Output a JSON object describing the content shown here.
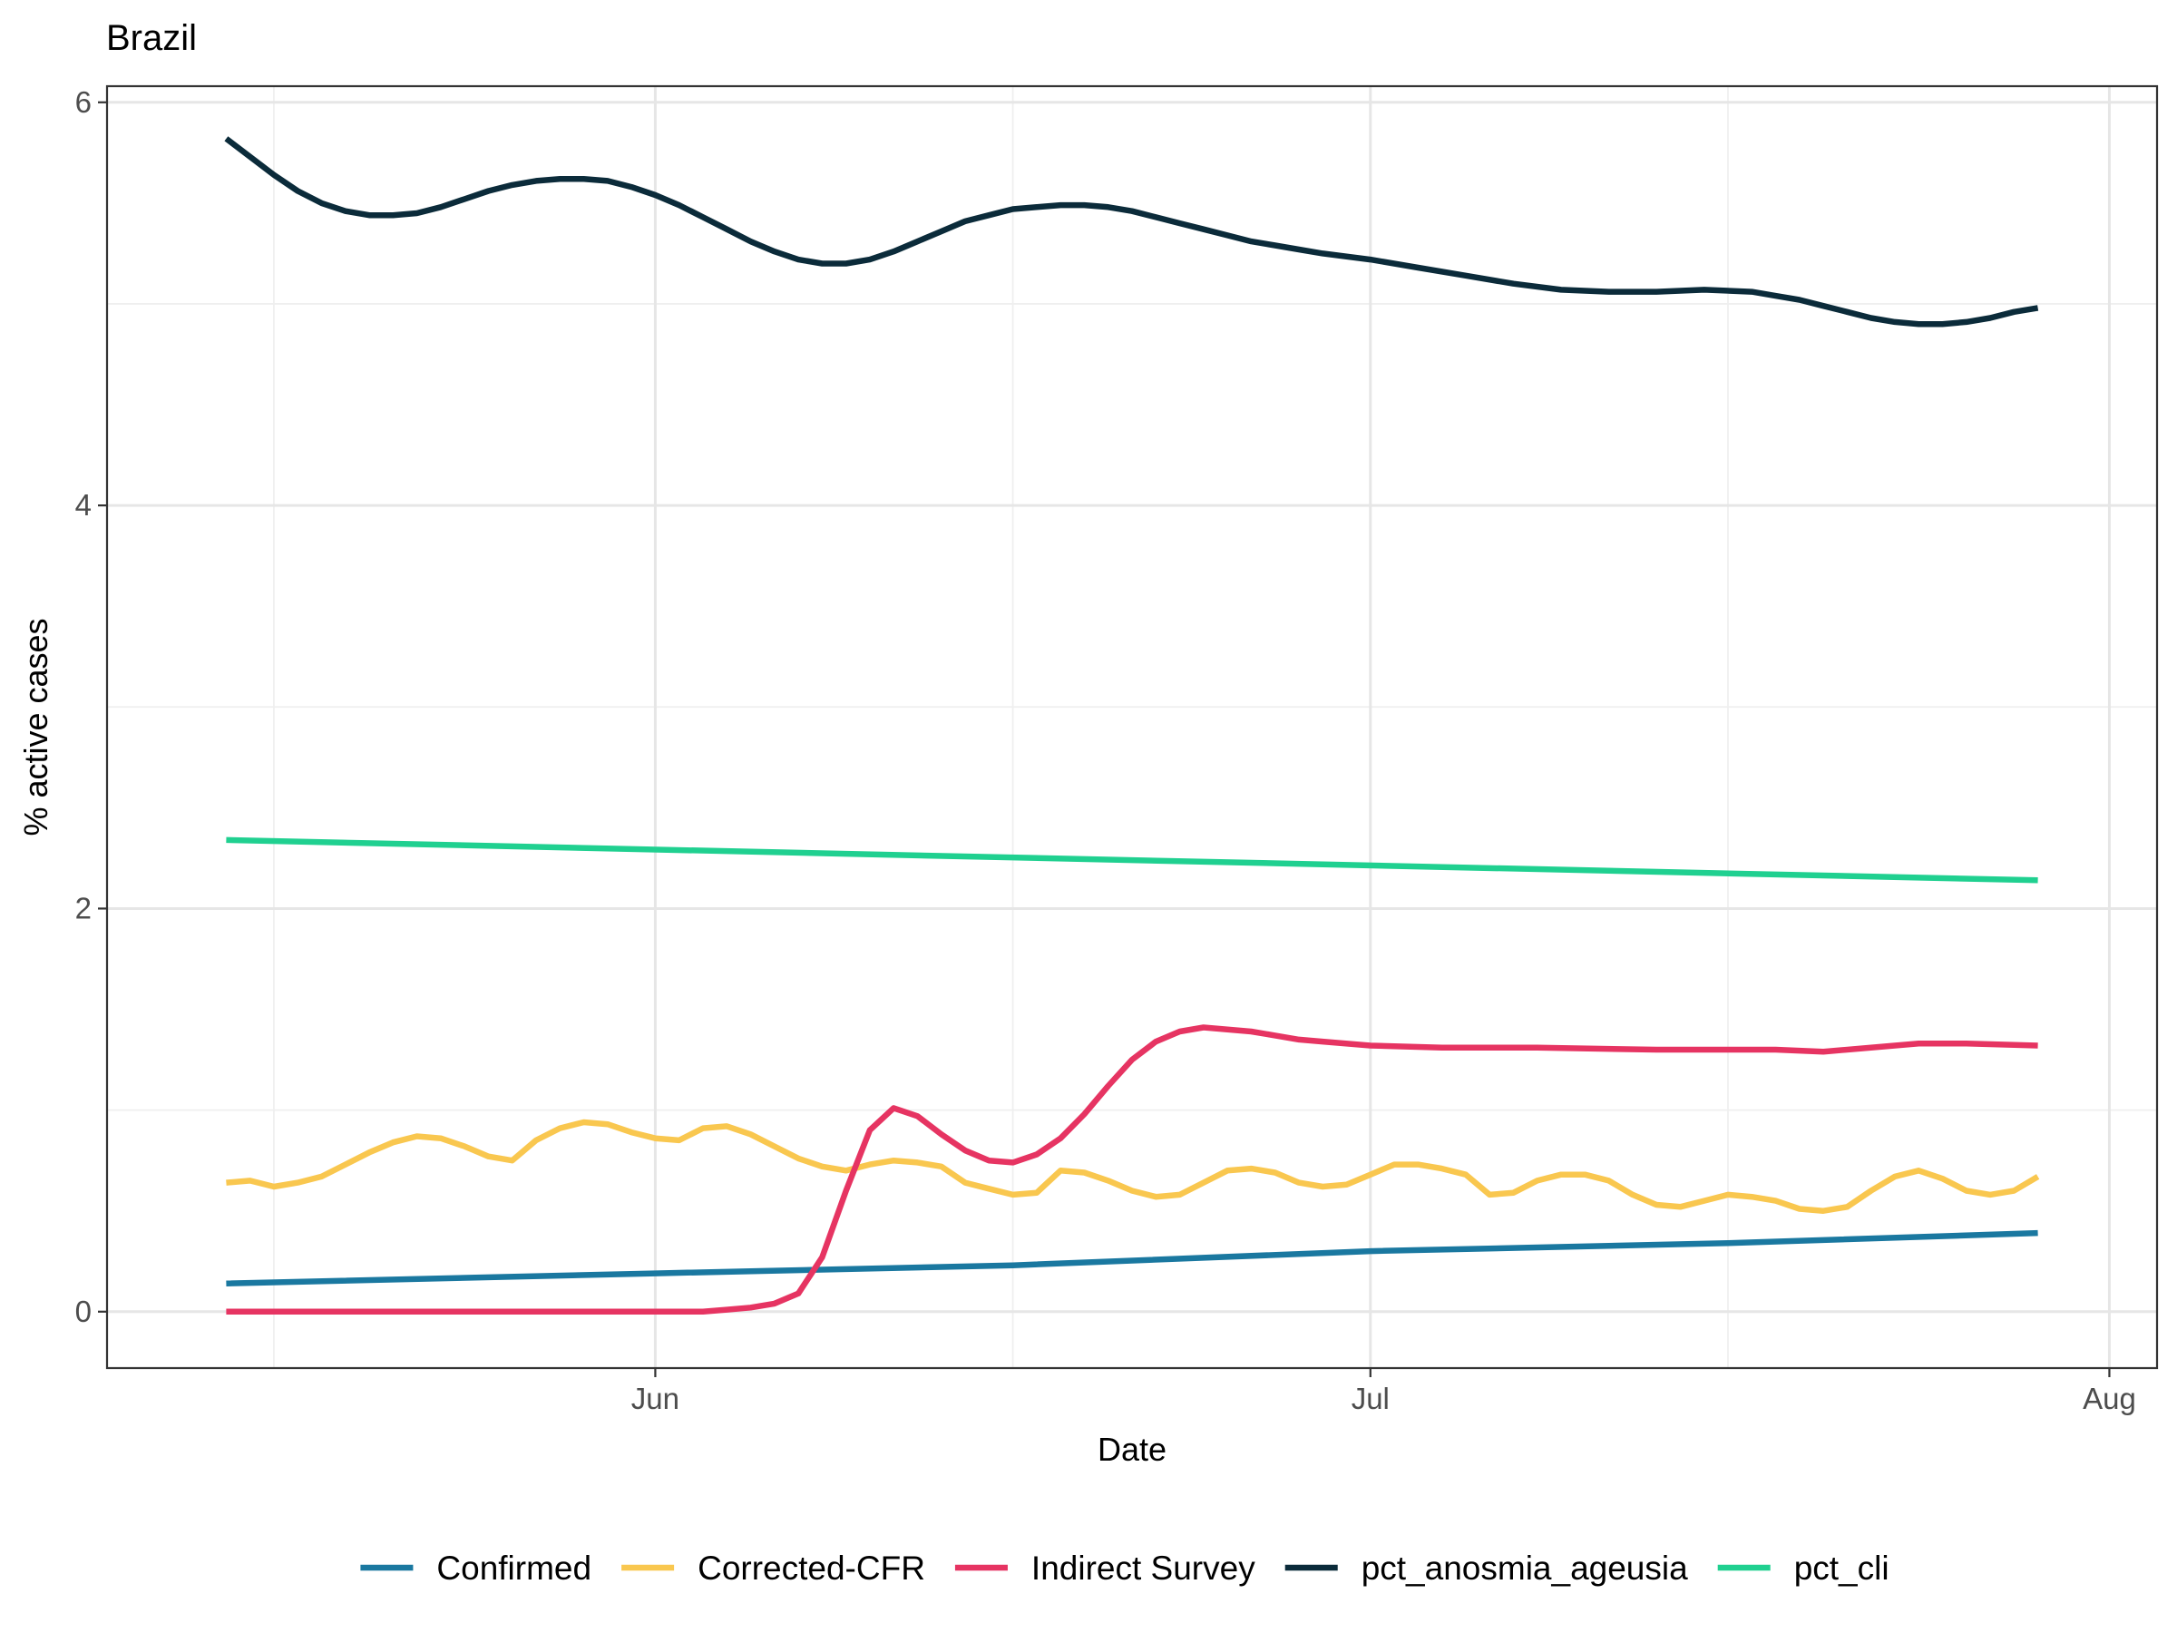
{
  "chart_data": {
    "type": "line",
    "title": "Brazil",
    "xlabel": "Date",
    "ylabel": "% active cases",
    "x_start": "2020-05-14",
    "x_end": "2020-07-29",
    "xlim": [
      "2020-05-09",
      "2020-08-03"
    ],
    "ylim": [
      -0.28,
      6.08
    ],
    "y_ticks": [
      {
        "value": 0,
        "label": "0"
      },
      {
        "value": 2,
        "label": "2"
      },
      {
        "value": 4,
        "label": "4"
      },
      {
        "value": 6,
        "label": "6"
      }
    ],
    "x_ticks": [
      {
        "date": "2020-06-01",
        "label": "Jun"
      },
      {
        "date": "2020-07-01",
        "label": "Jul"
      },
      {
        "date": "2020-08-01",
        "label": "Aug"
      }
    ],
    "x_minor": [
      "2020-05-16",
      "2020-06-16",
      "2020-07-16"
    ],
    "y_minor": [
      1,
      3,
      5
    ],
    "grid": true,
    "legend_position": "bottom",
    "series": [
      {
        "name": "Confirmed",
        "color": "#1a78a0",
        "points": [
          [
            "2020-05-14",
            0.14
          ],
          [
            "2020-06-01",
            0.19
          ],
          [
            "2020-06-16",
            0.23
          ],
          [
            "2020-07-01",
            0.3
          ],
          [
            "2020-07-16",
            0.34
          ],
          [
            "2020-07-29",
            0.39
          ]
        ]
      },
      {
        "name": "Corrected-CFR",
        "color": "#f9c74f",
        "points": [
          [
            "2020-05-14",
            0.64
          ],
          [
            "2020-05-15",
            0.65
          ],
          [
            "2020-05-16",
            0.62
          ],
          [
            "2020-05-17",
            0.64
          ],
          [
            "2020-05-18",
            0.67
          ],
          [
            "2020-05-19",
            0.73
          ],
          [
            "2020-05-20",
            0.79
          ],
          [
            "2020-05-21",
            0.84
          ],
          [
            "2020-05-22",
            0.87
          ],
          [
            "2020-05-23",
            0.86
          ],
          [
            "2020-05-24",
            0.82
          ],
          [
            "2020-05-25",
            0.77
          ],
          [
            "2020-05-26",
            0.75
          ],
          [
            "2020-05-27",
            0.85
          ],
          [
            "2020-05-28",
            0.91
          ],
          [
            "2020-05-29",
            0.94
          ],
          [
            "2020-05-30",
            0.93
          ],
          [
            "2020-05-31",
            0.89
          ],
          [
            "2020-06-01",
            0.86
          ],
          [
            "2020-06-02",
            0.85
          ],
          [
            "2020-06-03",
            0.91
          ],
          [
            "2020-06-04",
            0.92
          ],
          [
            "2020-06-05",
            0.88
          ],
          [
            "2020-06-06",
            0.82
          ],
          [
            "2020-06-07",
            0.76
          ],
          [
            "2020-06-08",
            0.72
          ],
          [
            "2020-06-09",
            0.7
          ],
          [
            "2020-06-10",
            0.73
          ],
          [
            "2020-06-11",
            0.75
          ],
          [
            "2020-06-12",
            0.74
          ],
          [
            "2020-06-13",
            0.72
          ],
          [
            "2020-06-14",
            0.64
          ],
          [
            "2020-06-15",
            0.61
          ],
          [
            "2020-06-16",
            0.58
          ],
          [
            "2020-06-17",
            0.59
          ],
          [
            "2020-06-18",
            0.7
          ],
          [
            "2020-06-19",
            0.69
          ],
          [
            "2020-06-20",
            0.65
          ],
          [
            "2020-06-21",
            0.6
          ],
          [
            "2020-06-22",
            0.57
          ],
          [
            "2020-06-23",
            0.58
          ],
          [
            "2020-06-24",
            0.64
          ],
          [
            "2020-06-25",
            0.7
          ],
          [
            "2020-06-26",
            0.71
          ],
          [
            "2020-06-27",
            0.69
          ],
          [
            "2020-06-28",
            0.64
          ],
          [
            "2020-06-29",
            0.62
          ],
          [
            "2020-06-30",
            0.63
          ],
          [
            "2020-07-01",
            0.68
          ],
          [
            "2020-07-02",
            0.73
          ],
          [
            "2020-07-03",
            0.73
          ],
          [
            "2020-07-04",
            0.71
          ],
          [
            "2020-07-05",
            0.68
          ],
          [
            "2020-07-06",
            0.58
          ],
          [
            "2020-07-07",
            0.59
          ],
          [
            "2020-07-08",
            0.65
          ],
          [
            "2020-07-09",
            0.68
          ],
          [
            "2020-07-10",
            0.68
          ],
          [
            "2020-07-11",
            0.65
          ],
          [
            "2020-07-12",
            0.58
          ],
          [
            "2020-07-13",
            0.53
          ],
          [
            "2020-07-14",
            0.52
          ],
          [
            "2020-07-15",
            0.55
          ],
          [
            "2020-07-16",
            0.58
          ],
          [
            "2020-07-17",
            0.57
          ],
          [
            "2020-07-18",
            0.55
          ],
          [
            "2020-07-19",
            0.51
          ],
          [
            "2020-07-20",
            0.5
          ],
          [
            "2020-07-21",
            0.52
          ],
          [
            "2020-07-22",
            0.6
          ],
          [
            "2020-07-23",
            0.67
          ],
          [
            "2020-07-24",
            0.7
          ],
          [
            "2020-07-25",
            0.66
          ],
          [
            "2020-07-26",
            0.6
          ],
          [
            "2020-07-27",
            0.58
          ],
          [
            "2020-07-28",
            0.6
          ],
          [
            "2020-07-29",
            0.67
          ]
        ]
      },
      {
        "name": "Indirect Survey",
        "color": "#e63462",
        "points": [
          [
            "2020-05-14",
            0.0
          ],
          [
            "2020-06-01",
            0.0
          ],
          [
            "2020-06-03",
            0.0
          ],
          [
            "2020-06-04",
            0.01
          ],
          [
            "2020-06-05",
            0.02
          ],
          [
            "2020-06-06",
            0.04
          ],
          [
            "2020-06-07",
            0.09
          ],
          [
            "2020-06-08",
            0.27
          ],
          [
            "2020-06-09",
            0.6
          ],
          [
            "2020-06-10",
            0.9
          ],
          [
            "2020-06-11",
            1.01
          ],
          [
            "2020-06-12",
            0.97
          ],
          [
            "2020-06-13",
            0.88
          ],
          [
            "2020-06-14",
            0.8
          ],
          [
            "2020-06-15",
            0.75
          ],
          [
            "2020-06-16",
            0.74
          ],
          [
            "2020-06-17",
            0.78
          ],
          [
            "2020-06-18",
            0.86
          ],
          [
            "2020-06-19",
            0.98
          ],
          [
            "2020-06-20",
            1.12
          ],
          [
            "2020-06-21",
            1.25
          ],
          [
            "2020-06-22",
            1.34
          ],
          [
            "2020-06-23",
            1.39
          ],
          [
            "2020-06-24",
            1.41
          ],
          [
            "2020-06-25",
            1.4
          ],
          [
            "2020-06-26",
            1.39
          ],
          [
            "2020-06-27",
            1.37
          ],
          [
            "2020-06-28",
            1.35
          ],
          [
            "2020-06-29",
            1.34
          ],
          [
            "2020-07-01",
            1.32
          ],
          [
            "2020-07-04",
            1.31
          ],
          [
            "2020-07-08",
            1.31
          ],
          [
            "2020-07-13",
            1.3
          ],
          [
            "2020-07-18",
            1.3
          ],
          [
            "2020-07-20",
            1.29
          ],
          [
            "2020-07-22",
            1.31
          ],
          [
            "2020-07-24",
            1.33
          ],
          [
            "2020-07-26",
            1.33
          ],
          [
            "2020-07-29",
            1.32
          ]
        ]
      },
      {
        "name": "pct_anosmia_ageusia",
        "color": "#0b2b3a",
        "points": [
          [
            "2020-05-14",
            5.82
          ],
          [
            "2020-05-15",
            5.73
          ],
          [
            "2020-05-16",
            5.64
          ],
          [
            "2020-05-17",
            5.56
          ],
          [
            "2020-05-18",
            5.5
          ],
          [
            "2020-05-19",
            5.46
          ],
          [
            "2020-05-20",
            5.44
          ],
          [
            "2020-05-21",
            5.44
          ],
          [
            "2020-05-22",
            5.45
          ],
          [
            "2020-05-23",
            5.48
          ],
          [
            "2020-05-24",
            5.52
          ],
          [
            "2020-05-25",
            5.56
          ],
          [
            "2020-05-26",
            5.59
          ],
          [
            "2020-05-27",
            5.61
          ],
          [
            "2020-05-28",
            5.62
          ],
          [
            "2020-05-29",
            5.62
          ],
          [
            "2020-05-30",
            5.61
          ],
          [
            "2020-05-31",
            5.58
          ],
          [
            "2020-06-01",
            5.54
          ],
          [
            "2020-06-02",
            5.49
          ],
          [
            "2020-06-03",
            5.43
          ],
          [
            "2020-06-04",
            5.37
          ],
          [
            "2020-06-05",
            5.31
          ],
          [
            "2020-06-06",
            5.26
          ],
          [
            "2020-06-07",
            5.22
          ],
          [
            "2020-06-08",
            5.2
          ],
          [
            "2020-06-09",
            5.2
          ],
          [
            "2020-06-10",
            5.22
          ],
          [
            "2020-06-11",
            5.26
          ],
          [
            "2020-06-12",
            5.31
          ],
          [
            "2020-06-13",
            5.36
          ],
          [
            "2020-06-14",
            5.41
          ],
          [
            "2020-06-15",
            5.44
          ],
          [
            "2020-06-16",
            5.47
          ],
          [
            "2020-06-17",
            5.48
          ],
          [
            "2020-06-18",
            5.49
          ],
          [
            "2020-06-19",
            5.49
          ],
          [
            "2020-06-20",
            5.48
          ],
          [
            "2020-06-21",
            5.46
          ],
          [
            "2020-06-22",
            5.43
          ],
          [
            "2020-06-23",
            5.4
          ],
          [
            "2020-06-24",
            5.37
          ],
          [
            "2020-06-25",
            5.34
          ],
          [
            "2020-06-26",
            5.31
          ],
          [
            "2020-06-27",
            5.29
          ],
          [
            "2020-06-28",
            5.27
          ],
          [
            "2020-06-29",
            5.25
          ],
          [
            "2020-07-01",
            5.22
          ],
          [
            "2020-07-03",
            5.18
          ],
          [
            "2020-07-05",
            5.14
          ],
          [
            "2020-07-07",
            5.1
          ],
          [
            "2020-07-09",
            5.07
          ],
          [
            "2020-07-11",
            5.06
          ],
          [
            "2020-07-13",
            5.06
          ],
          [
            "2020-07-15",
            5.07
          ],
          [
            "2020-07-17",
            5.06
          ],
          [
            "2020-07-18",
            5.04
          ],
          [
            "2020-07-19",
            5.02
          ],
          [
            "2020-07-20",
            4.99
          ],
          [
            "2020-07-21",
            4.96
          ],
          [
            "2020-07-22",
            4.93
          ],
          [
            "2020-07-23",
            4.91
          ],
          [
            "2020-07-24",
            4.9
          ],
          [
            "2020-07-25",
            4.9
          ],
          [
            "2020-07-26",
            4.91
          ],
          [
            "2020-07-27",
            4.93
          ],
          [
            "2020-07-28",
            4.96
          ],
          [
            "2020-07-29",
            4.98
          ]
        ]
      },
      {
        "name": "pct_cli",
        "color": "#20d090",
        "points": [
          [
            "2020-05-14",
            2.34
          ],
          [
            "2020-07-29",
            2.14
          ]
        ]
      }
    ]
  }
}
